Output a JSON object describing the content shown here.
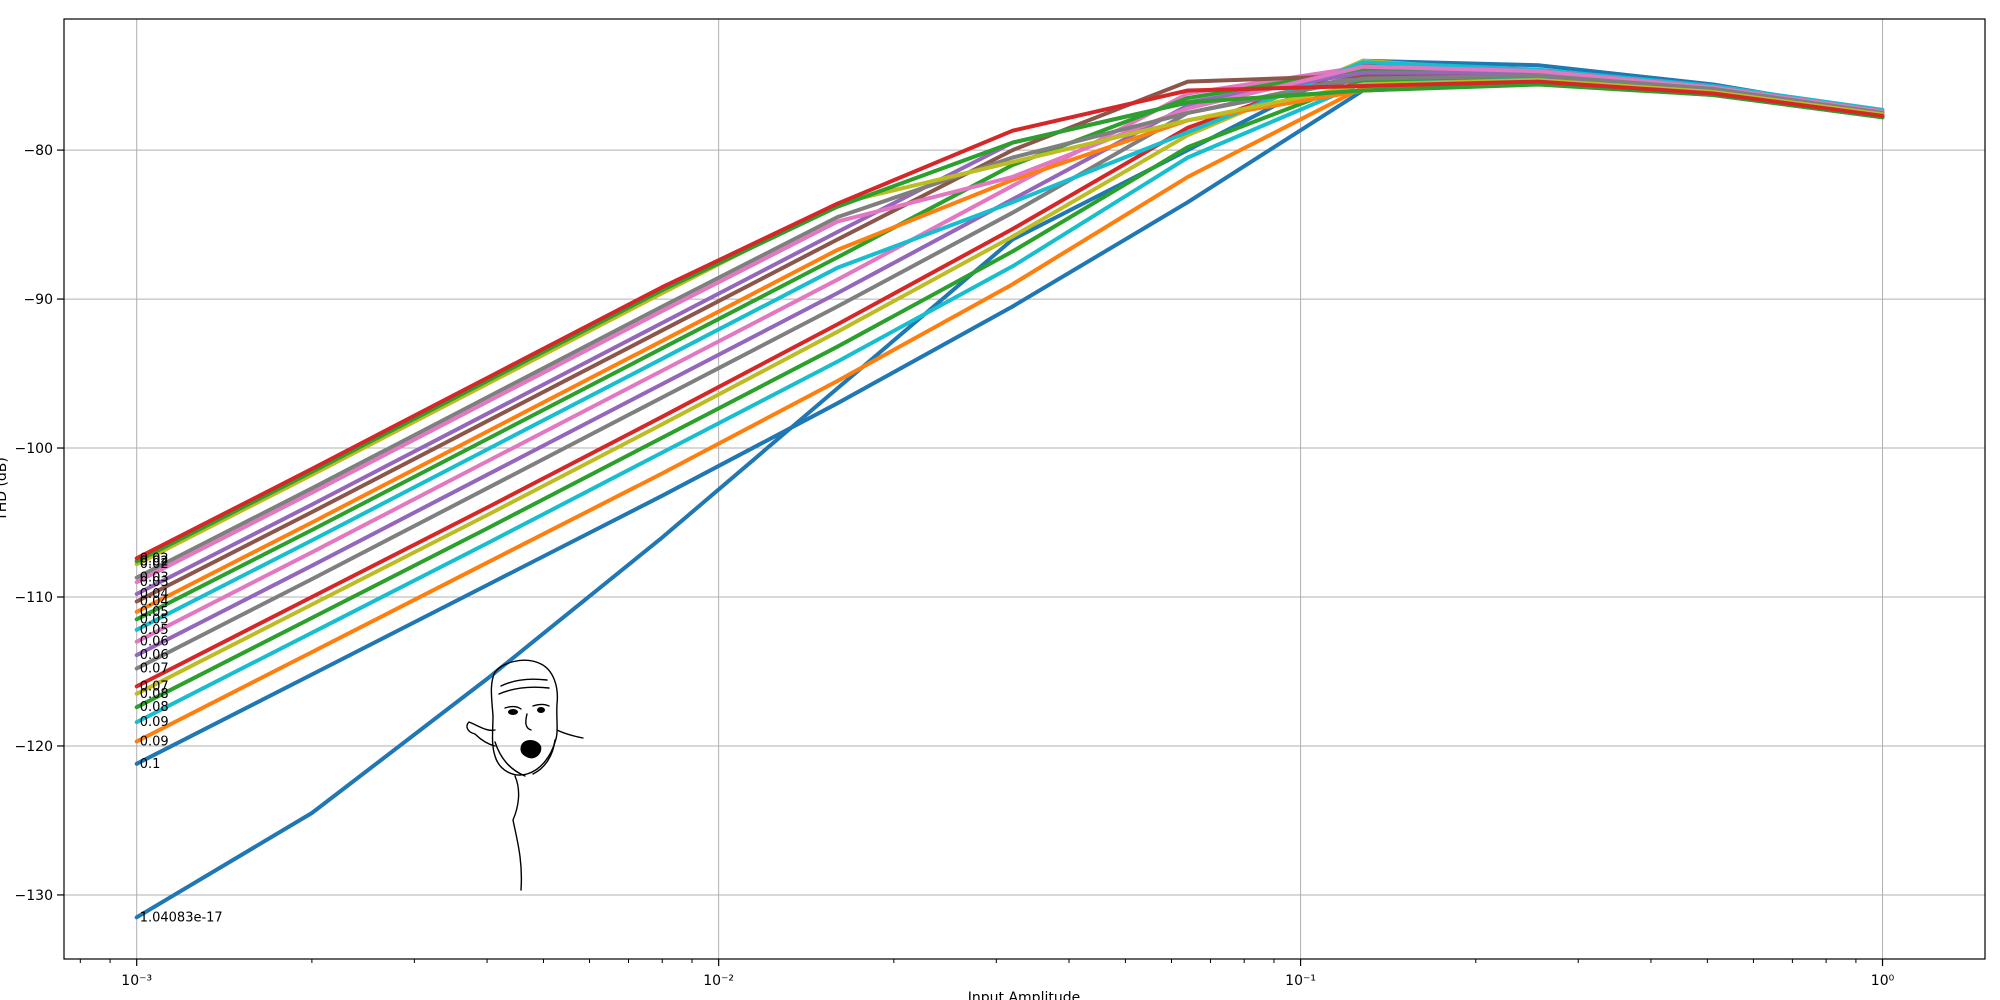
{
  "chart_data": {
    "type": "line",
    "title": "",
    "xlabel": "Input Amplitude",
    "ylabel": "THD (dB)",
    "xscale": "log",
    "xlim": [
      0.00075,
      1.5
    ],
    "ylim": [
      -134.3,
      -71.2
    ],
    "grid": true,
    "x": [
      0.001,
      0.002,
      0.004,
      0.008,
      0.016,
      0.032,
      0.064,
      0.128,
      0.256,
      0.512,
      1.0
    ],
    "xticks": [
      {
        "value": 0.001,
        "label": "10⁻³"
      },
      {
        "value": 0.01,
        "label": "10⁻²"
      },
      {
        "value": 0.1,
        "label": "10⁻¹"
      },
      {
        "value": 1,
        "label": "10⁰"
      }
    ],
    "yticks": [
      -130,
      -120,
      -110,
      -100,
      -90,
      -80
    ],
    "series": [
      {
        "label": "1.04083e-17",
        "color": "#1f77b4",
        "values": [
          -131.5,
          -124.5,
          -115.5,
          -106.0,
          -96.0,
          -86.0,
          -80.0,
          -74.0,
          -74.3,
          -75.6,
          -77.5
        ]
      },
      {
        "label": "0.1",
        "color": "#1f77b4",
        "values": [
          -121.2,
          -115.2,
          -109.2,
          -103.2,
          -97.0,
          -90.5,
          -83.5,
          -76.0,
          -75.5,
          -76.3,
          -77.8
        ]
      },
      {
        "label": "0.09",
        "color": "#ff7f0e",
        "values": [
          -119.7,
          -113.7,
          -107.7,
          -101.7,
          -95.5,
          -89.0,
          -81.8,
          -75.8,
          -75.3,
          -76.2,
          -77.7
        ]
      },
      {
        "label": "0.09",
        "color": "#17becf",
        "values": [
          -118.4,
          -112.4,
          -106.4,
          -100.3,
          -94.2,
          -87.8,
          -80.5,
          -75.5,
          -75.2,
          -76.1,
          -77.6
        ]
      },
      {
        "label": "0.08",
        "color": "#2ca02c",
        "values": [
          -117.4,
          -111.4,
          -105.4,
          -99.3,
          -93.2,
          -86.8,
          -79.8,
          -75.3,
          -75.0,
          -76.0,
          -77.5
        ]
      },
      {
        "label": "0.08",
        "color": "#bcbd22",
        "values": [
          -116.5,
          -110.5,
          -104.5,
          -98.4,
          -92.2,
          -85.8,
          -79.0,
          -74.0,
          -74.8,
          -75.9,
          -77.5
        ]
      },
      {
        "label": "0.07",
        "color": "#d62728",
        "values": [
          -116.0,
          -110.0,
          -104.0,
          -97.9,
          -91.7,
          -85.3,
          -78.5,
          -74.3,
          -74.7,
          -75.9,
          -77.5
        ]
      },
      {
        "label": "0.07",
        "color": "#7f7f7f",
        "values": [
          -114.8,
          -108.8,
          -102.7,
          -96.6,
          -90.5,
          -84.2,
          -77.5,
          -75.0,
          -75.0,
          -76.0,
          -77.6
        ]
      },
      {
        "label": "0.06",
        "color": "#9467bd",
        "values": [
          -113.9,
          -107.9,
          -101.8,
          -95.7,
          -89.6,
          -83.3,
          -77.0,
          -74.5,
          -74.8,
          -75.9,
          -77.5
        ]
      },
      {
        "label": "0.06",
        "color": "#e377c2",
        "values": [
          -113.0,
          -107.0,
          -100.9,
          -94.8,
          -88.7,
          -82.4,
          -76.2,
          -74.4,
          -74.7,
          -75.8,
          -77.4
        ]
      },
      {
        "label": "0.05",
        "color": "#17becf",
        "values": [
          -112.2,
          -106.2,
          -100.1,
          -94.0,
          -87.9,
          -83.5,
          -78.8,
          -74.1,
          -74.6,
          -75.7,
          -77.3
        ]
      },
      {
        "label": "0.05",
        "color": "#2ca02c",
        "values": [
          -111.5,
          -105.5,
          -99.4,
          -93.3,
          -87.2,
          -81.0,
          -76.5,
          -74.6,
          -74.7,
          -75.8,
          -77.4
        ]
      },
      {
        "label": "0.05",
        "color": "#ff7f0e",
        "values": [
          -111.0,
          -105.0,
          -98.9,
          -92.8,
          -86.7,
          -82.0,
          -78.0,
          -76.0,
          -75.5,
          -76.2,
          -77.7
        ]
      },
      {
        "label": "0.04",
        "color": "#8c564b",
        "values": [
          -110.3,
          -104.3,
          -98.2,
          -92.1,
          -86.0,
          -80.0,
          -75.4,
          -75.0,
          -74.9,
          -75.9,
          -77.5
        ]
      },
      {
        "label": "0.04",
        "color": "#9467bd",
        "values": [
          -109.8,
          -103.8,
          -97.7,
          -91.6,
          -85.5,
          -79.5,
          -76.8,
          -74.8,
          -74.8,
          -75.8,
          -77.4
        ]
      },
      {
        "label": "0.03",
        "color": "#e377c2",
        "values": [
          -109.0,
          -103.0,
          -96.9,
          -90.8,
          -84.8,
          -81.8,
          -77.2,
          -74.4,
          -74.7,
          -75.8,
          -77.4
        ]
      },
      {
        "label": "0.03",
        "color": "#7f7f7f",
        "values": [
          -108.7,
          -102.7,
          -96.6,
          -90.5,
          -84.5,
          -80.5,
          -77.5,
          -75.2,
          -75.0,
          -75.9,
          -77.5
        ]
      },
      {
        "label": "0.02",
        "color": "#bcbd22",
        "values": [
          -107.8,
          -101.8,
          -95.7,
          -89.6,
          -83.6,
          -80.8,
          -78.0,
          -75.6,
          -75.3,
          -76.1,
          -77.6
        ]
      },
      {
        "label": "0.02",
        "color": "#2ca02c",
        "values": [
          -107.6,
          -101.6,
          -95.5,
          -89.4,
          -83.8,
          -79.5,
          -76.8,
          -76.0,
          -75.6,
          -76.3,
          -77.8
        ]
      },
      {
        "label": "0.02",
        "color": "#d62728",
        "values": [
          -107.4,
          -101.4,
          -95.3,
          -89.2,
          -83.6,
          -78.7,
          -76.0,
          -75.7,
          -75.4,
          -76.2,
          -77.7
        ]
      }
    ]
  }
}
